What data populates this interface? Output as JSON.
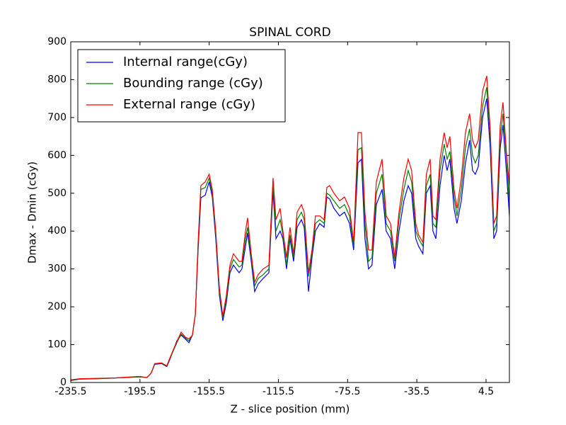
{
  "chart_data": {
    "type": "line",
    "title": "SPINAL CORD",
    "xlabel": "Z - slice position (mm)",
    "ylabel": "Dmax - Dmin (cGy)",
    "x": [
      -235.5,
      -230,
      -220,
      -210,
      -200,
      -195.5,
      -191.5,
      -189,
      -187,
      -183,
      -180,
      -178.3,
      -174.2,
      -171.7,
      -169.3,
      -167.2,
      -165.2,
      -163.5,
      -161.9,
      -160.3,
      -157.8,
      -155.5,
      -153.7,
      -151.7,
      -149.6,
      -147.6,
      -145.6,
      -143.5,
      -141.5,
      -138.2,
      -136.6,
      -134.5,
      -133.3,
      -131.2,
      -129.2,
      -127.2,
      -124.3,
      -121,
      -118.6,
      -116.9,
      -114.5,
      -112.9,
      -110.8,
      -108.8,
      -106.7,
      -104.7,
      -102.2,
      -100.6,
      -98.1,
      -96.1,
      -94.1,
      -91.6,
      -89.1,
      -87.5,
      -85.9,
      -83.4,
      -80.1,
      -77.3,
      -74.4,
      -72,
      -69.5,
      -67.5,
      -65.5,
      -63.4,
      -61.4,
      -58.9,
      -55.6,
      -53.2,
      -50.7,
      -48.3,
      -45.8,
      -43,
      -40.5,
      -38.5,
      -36.1,
      -34.5,
      -32,
      -30,
      -27.8,
      -26.2,
      -24.5,
      -22.1,
      -19.7,
      -18,
      -16.4,
      -14,
      -12.3,
      -9.8,
      -7.4,
      -5,
      -3.3,
      -1.7,
      0,
      2.5,
      4.9,
      6.9,
      9,
      10.6,
      12.7,
      14.3,
      16.4,
      18
    ],
    "series": [
      {
        "name": "Internal range(cGy)",
        "color": "#0000ff",
        "values": [
          5,
          9,
          10,
          12,
          14,
          15,
          13,
          25,
          48,
          50,
          42,
          60,
          110,
          125,
          115,
          105,
          125,
          180,
          350,
          488,
          495,
          530,
          490,
          380,
          230,
          163,
          210,
          290,
          310,
          290,
          300,
          360,
          395,
          320,
          240,
          260,
          275,
          290,
          505,
          380,
          400,
          380,
          300,
          380,
          320,
          410,
          430,
          410,
          240,
          330,
          400,
          420,
          410,
          490,
          485,
          460,
          440,
          450,
          420,
          350,
          580,
          590,
          380,
          300,
          310,
          470,
          510,
          400,
          380,
          300,
          400,
          480,
          520,
          500,
          380,
          360,
          340,
          500,
          520,
          400,
          380,
          520,
          600,
          560,
          590,
          460,
          420,
          480,
          580,
          640,
          560,
          550,
          570,
          700,
          750,
          620,
          380,
          400,
          620,
          680,
          550,
          440
        ]
      },
      {
        "name": "Bounding range (cGy)",
        "color": "#008000",
        "values": [
          6,
          9,
          10,
          12,
          14,
          15,
          13,
          25,
          49,
          51,
          43,
          62,
          105,
          128,
          118,
          110,
          125,
          180,
          360,
          510,
          515,
          540,
          500,
          390,
          240,
          170,
          220,
          300,
          325,
          305,
          310,
          380,
          410,
          330,
          255,
          275,
          285,
          300,
          520,
          400,
          430,
          390,
          310,
          390,
          330,
          430,
          450,
          430,
          280,
          340,
          420,
          430,
          420,
          500,
          495,
          480,
          460,
          470,
          440,
          360,
          615,
          620,
          420,
          320,
          330,
          500,
          550,
          420,
          400,
          320,
          430,
          510,
          560,
          530,
          400,
          380,
          360,
          520,
          550,
          420,
          410,
          560,
          630,
          590,
          610,
          490,
          440,
          510,
          620,
          670,
          600,
          580,
          600,
          730,
          780,
          650,
          400,
          420,
          650,
          710,
          590,
          470
        ]
      },
      {
        "name": "External range (cGy)",
        "color": "#ff0000",
        "values": [
          7,
          10,
          11,
          12,
          15,
          16,
          13,
          25,
          50,
          52,
          44,
          64,
          108,
          133,
          120,
          115,
          125,
          180,
          370,
          520,
          530,
          550,
          510,
          400,
          250,
          175,
          230,
          310,
          340,
          320,
          320,
          400,
          435,
          340,
          265,
          285,
          300,
          310,
          540,
          430,
          460,
          400,
          330,
          410,
          340,
          450,
          470,
          450,
          290,
          350,
          440,
          440,
          430,
          515,
          520,
          500,
          480,
          490,
          460,
          370,
          660,
          660,
          450,
          350,
          350,
          530,
          590,
          440,
          420,
          330,
          450,
          540,
          590,
          560,
          420,
          390,
          370,
          550,
          590,
          440,
          430,
          590,
          660,
          620,
          650,
          510,
          460,
          540,
          660,
          710,
          640,
          620,
          640,
          770,
          810,
          670,
          420,
          440,
          680,
          740,
          600,
          520
        ]
      }
    ],
    "xlim": [
      -235.5,
      18
    ],
    "xticks": [
      -235.5,
      -195.5,
      -155.5,
      -115.5,
      -75.5,
      -35.5,
      4.5
    ],
    "ylim": [
      0,
      900
    ],
    "yticks": [
      0,
      100,
      200,
      300,
      400,
      500,
      600,
      700,
      800,
      900
    ],
    "legend": "upper left"
  }
}
